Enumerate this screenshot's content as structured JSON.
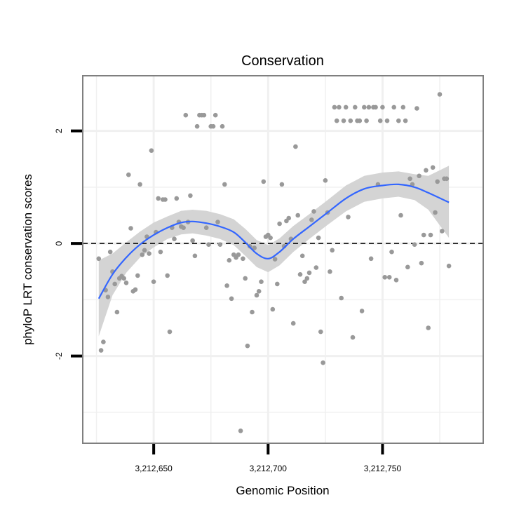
{
  "chart_data": {
    "type": "scatter",
    "title": "Conservation",
    "xlabel": "Genomic Position",
    "ylabel": "phyloP LRT conservation scores",
    "xlim": [
      3212619,
      3212794
    ],
    "ylim": [
      -3.55,
      2.98
    ],
    "x_ticks": [
      3212650,
      3212700,
      3212750
    ],
    "x_tick_labels": [
      "3,212,650",
      "3,212,700",
      "3,212,750"
    ],
    "y_ticks": [
      -2,
      0,
      2
    ],
    "y_tick_labels": [
      "-2",
      "0",
      "2"
    ],
    "reference_line": {
      "y": 0,
      "style": "dashed"
    },
    "grid": true,
    "legend": "none",
    "colors": {
      "points": "#999999",
      "smooth_line": "#3366ff",
      "confidence_band": "#d4d4d4",
      "panel_border": "#7f7f7f",
      "grid": "#f0f0f0",
      "axis_ticks": "#000000"
    },
    "points": [
      {
        "x": 3212626,
        "y": -0.27
      },
      {
        "x": 3212627,
        "y": -1.9
      },
      {
        "x": 3212628,
        "y": -1.75
      },
      {
        "x": 3212629,
        "y": -0.83
      },
      {
        "x": 3212630,
        "y": -0.95
      },
      {
        "x": 3212631,
        "y": -0.15
      },
      {
        "x": 3212632,
        "y": -0.5
      },
      {
        "x": 3212633,
        "y": -0.72
      },
      {
        "x": 3212634,
        "y": -1.22
      },
      {
        "x": 3212635,
        "y": -0.62
      },
      {
        "x": 3212636,
        "y": -0.58
      },
      {
        "x": 3212637,
        "y": -0.62
      },
      {
        "x": 3212638,
        "y": -0.7
      },
      {
        "x": 3212639,
        "y": 1.22
      },
      {
        "x": 3212640,
        "y": 0.27
      },
      {
        "x": 3212641,
        "y": -0.85
      },
      {
        "x": 3212642,
        "y": -0.82
      },
      {
        "x": 3212643,
        "y": -0.57
      },
      {
        "x": 3212644,
        "y": 1.05
      },
      {
        "x": 3212645,
        "y": -0.2
      },
      {
        "x": 3212646,
        "y": -0.12
      },
      {
        "x": 3212647,
        "y": 0.12
      },
      {
        "x": 3212648,
        "y": -0.18
      },
      {
        "x": 3212649,
        "y": 1.65
      },
      {
        "x": 3212650,
        "y": -0.68
      },
      {
        "x": 3212651,
        "y": 0.2
      },
      {
        "x": 3212652,
        "y": 0.8
      },
      {
        "x": 3212653,
        "y": -0.15
      },
      {
        "x": 3212654,
        "y": 0.78
      },
      {
        "x": 3212655,
        "y": 0.78
      },
      {
        "x": 3212656,
        "y": -0.57
      },
      {
        "x": 3212657,
        "y": -1.57
      },
      {
        "x": 3212658,
        "y": 0.28
      },
      {
        "x": 3212659,
        "y": 0.08
      },
      {
        "x": 3212660,
        "y": 0.8
      },
      {
        "x": 3212661,
        "y": 0.38
      },
      {
        "x": 3212662,
        "y": 0.3
      },
      {
        "x": 3212663,
        "y": 0.28
      },
      {
        "x": 3212664,
        "y": 2.28
      },
      {
        "x": 3212665,
        "y": 0.38
      },
      {
        "x": 3212666,
        "y": 0.85
      },
      {
        "x": 3212667,
        "y": 0.05
      },
      {
        "x": 3212668,
        "y": -0.22
      },
      {
        "x": 3212669,
        "y": 2.08
      },
      {
        "x": 3212670,
        "y": 2.28
      },
      {
        "x": 3212671,
        "y": 2.28
      },
      {
        "x": 3212672,
        "y": 2.28
      },
      {
        "x": 3212673,
        "y": 0.28
      },
      {
        "x": 3212674,
        "y": -0.02
      },
      {
        "x": 3212675,
        "y": 2.08
      },
      {
        "x": 3212676,
        "y": 2.08
      },
      {
        "x": 3212677,
        "y": 2.28
      },
      {
        "x": 3212678,
        "y": 0.38
      },
      {
        "x": 3212679,
        "y": -0.02
      },
      {
        "x": 3212680,
        "y": 2.08
      },
      {
        "x": 3212681,
        "y": 1.05
      },
      {
        "x": 3212682,
        "y": -0.75
      },
      {
        "x": 3212683,
        "y": -0.3
      },
      {
        "x": 3212684,
        "y": -0.98
      },
      {
        "x": 3212685,
        "y": -0.2
      },
      {
        "x": 3212686,
        "y": -0.25
      },
      {
        "x": 3212687,
        "y": -0.2
      },
      {
        "x": 3212688,
        "y": -3.33
      },
      {
        "x": 3212689,
        "y": -0.27
      },
      {
        "x": 3212690,
        "y": -0.62
      },
      {
        "x": 3212691,
        "y": -1.82
      },
      {
        "x": 3212692,
        "y": -0.05
      },
      {
        "x": 3212693,
        "y": -1.22
      },
      {
        "x": 3212694,
        "y": -0.08
      },
      {
        "x": 3212695,
        "y": -0.92
      },
      {
        "x": 3212696,
        "y": -0.85
      },
      {
        "x": 3212697,
        "y": -0.68
      },
      {
        "x": 3212698,
        "y": 1.1
      },
      {
        "x": 3212699,
        "y": 0.12
      },
      {
        "x": 3212700,
        "y": 0.15
      },
      {
        "x": 3212701,
        "y": 0.1
      },
      {
        "x": 3212702,
        "y": -1.17
      },
      {
        "x": 3212703,
        "y": -0.28
      },
      {
        "x": 3212704,
        "y": -0.72
      },
      {
        "x": 3212705,
        "y": 0.35
      },
      {
        "x": 3212706,
        "y": 1.05
      },
      {
        "x": 3212707,
        "y": -0.05
      },
      {
        "x": 3212708,
        "y": 0.4
      },
      {
        "x": 3212709,
        "y": 0.45
      },
      {
        "x": 3212710,
        "y": 0.08
      },
      {
        "x": 3212711,
        "y": -1.42
      },
      {
        "x": 3212712,
        "y": 1.72
      },
      {
        "x": 3212713,
        "y": 0.5
      },
      {
        "x": 3212714,
        "y": -0.55
      },
      {
        "x": 3212715,
        "y": -0.22
      },
      {
        "x": 3212716,
        "y": -0.68
      },
      {
        "x": 3212717,
        "y": -0.62
      },
      {
        "x": 3212718,
        "y": -0.52
      },
      {
        "x": 3212719,
        "y": 0.42
      },
      {
        "x": 3212720,
        "y": 0.57
      },
      {
        "x": 3212721,
        "y": -0.43
      },
      {
        "x": 3212722,
        "y": 0.1
      },
      {
        "x": 3212723,
        "y": -1.57
      },
      {
        "x": 3212724,
        "y": -2.12
      },
      {
        "x": 3212725,
        "y": 1.12
      },
      {
        "x": 3212726,
        "y": 0.55
      },
      {
        "x": 3212727,
        "y": -0.5
      },
      {
        "x": 3212728,
        "y": -0.12
      },
      {
        "x": 3212729,
        "y": 2.42
      },
      {
        "x": 3212730,
        "y": 2.18
      },
      {
        "x": 3212731,
        "y": 2.42
      },
      {
        "x": 3212732,
        "y": -0.97
      },
      {
        "x": 3212733,
        "y": 2.18
      },
      {
        "x": 3212734,
        "y": 2.42
      },
      {
        "x": 3212735,
        "y": 0.47
      },
      {
        "x": 3212736,
        "y": 2.18
      },
      {
        "x": 3212737,
        "y": -1.67
      },
      {
        "x": 3212738,
        "y": 2.42
      },
      {
        "x": 3212739,
        "y": 2.18
      },
      {
        "x": 3212740,
        "y": 2.18
      },
      {
        "x": 3212741,
        "y": -1.2
      },
      {
        "x": 3212742,
        "y": 2.42
      },
      {
        "x": 3212743,
        "y": 2.18
      },
      {
        "x": 3212744,
        "y": 2.42
      },
      {
        "x": 3212745,
        "y": -0.27
      },
      {
        "x": 3212746,
        "y": 2.42
      },
      {
        "x": 3212747,
        "y": 2.42
      },
      {
        "x": 3212748,
        "y": 1.05
      },
      {
        "x": 3212749,
        "y": 2.18
      },
      {
        "x": 3212750,
        "y": 2.42
      },
      {
        "x": 3212751,
        "y": -0.6
      },
      {
        "x": 3212752,
        "y": 2.18
      },
      {
        "x": 3212753,
        "y": -0.6
      },
      {
        "x": 3212754,
        "y": -0.15
      },
      {
        "x": 3212755,
        "y": 2.42
      },
      {
        "x": 3212756,
        "y": -0.65
      },
      {
        "x": 3212757,
        "y": 2.18
      },
      {
        "x": 3212758,
        "y": 0.5
      },
      {
        "x": 3212759,
        "y": 2.42
      },
      {
        "x": 3212760,
        "y": 2.18
      },
      {
        "x": 3212761,
        "y": -0.42
      },
      {
        "x": 3212762,
        "y": 1.15
      },
      {
        "x": 3212763,
        "y": 1.05
      },
      {
        "x": 3212764,
        "y": -0.02
      },
      {
        "x": 3212765,
        "y": 2.4
      },
      {
        "x": 3212766,
        "y": 1.2
      },
      {
        "x": 3212767,
        "y": -0.35
      },
      {
        "x": 3212768,
        "y": 0.15
      },
      {
        "x": 3212769,
        "y": 1.3
      },
      {
        "x": 3212770,
        "y": -1.5
      },
      {
        "x": 3212771,
        "y": 0.15
      },
      {
        "x": 3212772,
        "y": 1.35
      },
      {
        "x": 3212773,
        "y": 0.55
      },
      {
        "x": 3212774,
        "y": 1.1
      },
      {
        "x": 3212775,
        "y": 2.65
      },
      {
        "x": 3212776,
        "y": 0.22
      },
      {
        "x": 3212777,
        "y": 1.15
      },
      {
        "x": 3212778,
        "y": 1.15
      },
      {
        "x": 3212779,
        "y": -0.4
      }
    ],
    "smooth": [
      {
        "x": 3212626,
        "y": -0.98,
        "lo": -1.65,
        "hi": -0.3
      },
      {
        "x": 3212632,
        "y": -0.55,
        "lo": -0.92,
        "hi": -0.18
      },
      {
        "x": 3212638,
        "y": -0.25,
        "lo": -0.52,
        "hi": 0.02
      },
      {
        "x": 3212644,
        "y": -0.02,
        "lo": -0.25,
        "hi": 0.21
      },
      {
        "x": 3212650,
        "y": 0.15,
        "lo": -0.07,
        "hi": 0.37
      },
      {
        "x": 3212656,
        "y": 0.28,
        "lo": 0.08,
        "hi": 0.48
      },
      {
        "x": 3212662,
        "y": 0.37,
        "lo": 0.16,
        "hi": 0.58
      },
      {
        "x": 3212667,
        "y": 0.39,
        "lo": 0.18,
        "hi": 0.6
      },
      {
        "x": 3212673,
        "y": 0.36,
        "lo": 0.14,
        "hi": 0.58
      },
      {
        "x": 3212679,
        "y": 0.3,
        "lo": 0.08,
        "hi": 0.52
      },
      {
        "x": 3212685,
        "y": 0.2,
        "lo": -0.03,
        "hi": 0.43
      },
      {
        "x": 3212690,
        "y": 0.02,
        "lo": -0.22,
        "hi": 0.26
      },
      {
        "x": 3212695,
        "y": -0.18,
        "lo": -0.42,
        "hi": 0.06
      },
      {
        "x": 3212700,
        "y": -0.27,
        "lo": -0.51,
        "hi": -0.03
      },
      {
        "x": 3212705,
        "y": -0.15,
        "lo": -0.39,
        "hi": 0.09
      },
      {
        "x": 3212711,
        "y": 0.08,
        "lo": -0.15,
        "hi": 0.31
      },
      {
        "x": 3212718,
        "y": 0.3,
        "lo": 0.08,
        "hi": 0.52
      },
      {
        "x": 3212726,
        "y": 0.55,
        "lo": 0.33,
        "hi": 0.77
      },
      {
        "x": 3212734,
        "y": 0.8,
        "lo": 0.57,
        "hi": 1.03
      },
      {
        "x": 3212742,
        "y": 0.97,
        "lo": 0.74,
        "hi": 1.2
      },
      {
        "x": 3212750,
        "y": 1.03,
        "lo": 0.8,
        "hi": 1.26
      },
      {
        "x": 3212757,
        "y": 1.05,
        "lo": 0.83,
        "hi": 1.28
      },
      {
        "x": 3212764,
        "y": 1.0,
        "lo": 0.77,
        "hi": 1.23
      },
      {
        "x": 3212770,
        "y": 0.9,
        "lo": 0.6,
        "hi": 1.2
      },
      {
        "x": 3212779,
        "y": 0.73,
        "lo": 0.1,
        "hi": 1.38
      }
    ]
  }
}
